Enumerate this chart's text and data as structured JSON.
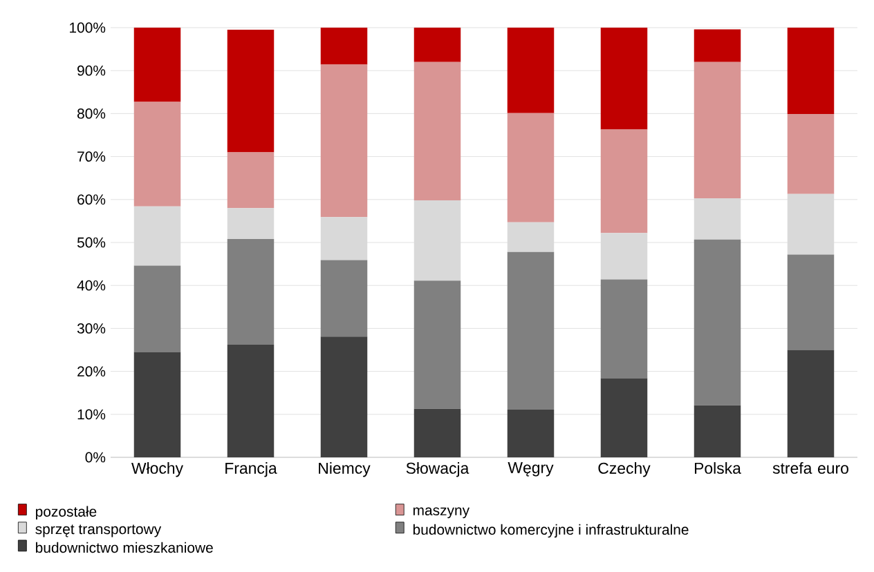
{
  "chart_data": {
    "type": "bar",
    "stacked": true,
    "categories": [
      "Włochy",
      "Francja",
      "Niemcy",
      "Słowacja",
      "Węgry",
      "Czechy",
      "Polska",
      "strefa euro"
    ],
    "series": [
      {
        "name": "budownictwo mieszkaniowe",
        "color": "#404040",
        "values": [
          24.5,
          26.2,
          28.1,
          11.3,
          11.1,
          18.4,
          12.1,
          25.0
        ]
      },
      {
        "name": "budownictwo komercyjne i infrastrukturalne",
        "color": "#808080",
        "values": [
          20.1,
          24.6,
          17.8,
          29.8,
          36.7,
          23.0,
          38.6,
          22.2
        ]
      },
      {
        "name": "sprzęt transportowy",
        "color": "#d9d9d9",
        "values": [
          13.8,
          7.2,
          10.0,
          18.7,
          6.9,
          10.8,
          9.6,
          14.1
        ]
      },
      {
        "name": "maszyny",
        "color": "#d99594",
        "values": [
          24.3,
          13.0,
          35.5,
          32.2,
          25.4,
          24.1,
          31.7,
          18.6
        ]
      },
      {
        "name": "pozostałe",
        "color": "#c00000",
        "values": [
          17.3,
          28.5,
          8.6,
          8.0,
          19.9,
          23.7,
          7.6,
          20.1
        ]
      }
    ],
    "ylim": [
      0,
      100
    ],
    "yticks": [
      {
        "value": 0,
        "label": "0%"
      },
      {
        "value": 10,
        "label": "10%"
      },
      {
        "value": 20,
        "label": "20%"
      },
      {
        "value": 30,
        "label": "30%"
      },
      {
        "value": 40,
        "label": "40%"
      },
      {
        "value": 50,
        "label": "50%"
      },
      {
        "value": 60,
        "label": "60%"
      },
      {
        "value": 70,
        "label": "70%"
      },
      {
        "value": 80,
        "label": "80%"
      },
      {
        "value": 90,
        "label": "90%"
      },
      {
        "value": 100,
        "label": "100%"
      }
    ],
    "grid": "y",
    "legend": "bottom"
  }
}
